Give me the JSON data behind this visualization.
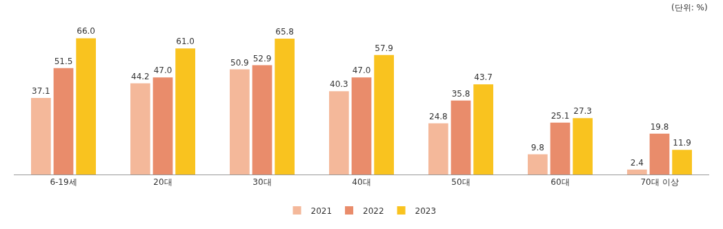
{
  "chart_data": {
    "type": "bar",
    "categories": [
      "6-19세",
      "20대",
      "30대",
      "40대",
      "50대",
      "60대",
      "70대 이상"
    ],
    "series": [
      {
        "name": "2021",
        "color": "#f4b89a",
        "values": [
          37.1,
          44.2,
          50.9,
          40.3,
          24.8,
          9.8,
          2.4
        ],
        "value_labels": [
          "37.1",
          "44.2",
          "50.9",
          "40.3",
          "24.8",
          "9.8",
          "2.4"
        ]
      },
      {
        "name": "2022",
        "color": "#e98c6b",
        "values": [
          51.5,
          47.0,
          52.9,
          47.0,
          35.8,
          25.1,
          19.8
        ],
        "value_labels": [
          "51.5",
          "47.0",
          "52.9",
          "47.0",
          "35.8",
          "25.1",
          "19.8"
        ]
      },
      {
        "name": "2023",
        "color": "#f9c31f",
        "values": [
          66.0,
          61.0,
          65.8,
          57.9,
          43.7,
          27.3,
          11.9
        ],
        "value_labels": [
          "66.0",
          "61.0",
          "65.8",
          "57.9",
          "43.7",
          "27.3",
          "11.9"
        ]
      }
    ],
    "legend": "bottom",
    "annotations": [
      "(단위: %)"
    ]
  }
}
